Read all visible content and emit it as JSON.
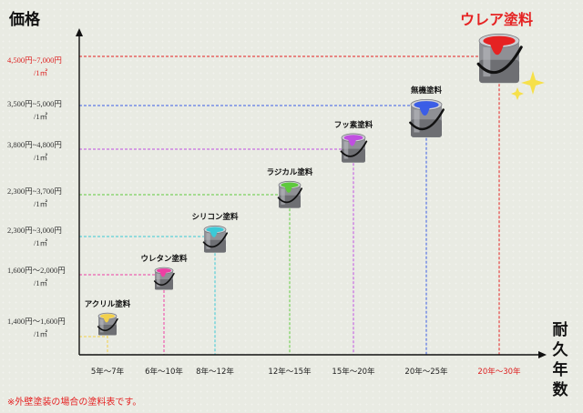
{
  "y_axis_title": "価格",
  "x_axis_title": "耐久年数",
  "highlight_title": "ウレア塗料",
  "footnote": "※外壁塗装の場合の塗料表です。",
  "chart_data": {
    "type": "scatter",
    "xlabel": "耐久年数",
    "ylabel": "価格",
    "points": [
      {
        "name": "アクリル塗料",
        "price_line1": "1,400円〜1,600円",
        "price_line2": "/1㎡",
        "durability": "5年〜7年",
        "color": "#f2d04a",
        "line_color": "#f2d04a",
        "highlight": false
      },
      {
        "name": "ウレタン塗料",
        "price_line1": "1,600円〜2,000円",
        "price_line2": "/1㎡",
        "durability": "6年〜10年",
        "color": "#ee3fa4",
        "line_color": "#ee3fa4",
        "highlight": false
      },
      {
        "name": "シリコン塗料",
        "price_line1": "2,300円~3,000円",
        "price_line2": "/1㎡",
        "durability": "8年〜12年",
        "color": "#3cc9d6",
        "line_color": "#3cc9d6",
        "highlight": false
      },
      {
        "name": "ラジカル塗料",
        "price_line1": "2,300円~3,700円",
        "price_line2": "/1㎡",
        "durability": "12年〜15年",
        "color": "#5ec93c",
        "line_color": "#5ec93c",
        "highlight": false
      },
      {
        "name": "フッ素塗料",
        "price_line1": "3,800円~4,800円",
        "price_line2": "/1㎡",
        "durability": "15年〜20年",
        "color": "#c04fe0",
        "line_color": "#c04fe0",
        "highlight": false
      },
      {
        "name": "無機塗料",
        "price_line1": "3,500円~5,000円",
        "price_line2": "/1㎡",
        "durability": "20年〜25年",
        "color": "#3b5de6",
        "line_color": "#3b5de6",
        "highlight": false
      },
      {
        "name": "ウレア塗料",
        "price_line1": "4,500円~7,000円",
        "price_line2": "/1㎡",
        "durability": "20年〜30年",
        "color": "#e52222",
        "line_color": "#e52222",
        "highlight": true
      }
    ]
  }
}
